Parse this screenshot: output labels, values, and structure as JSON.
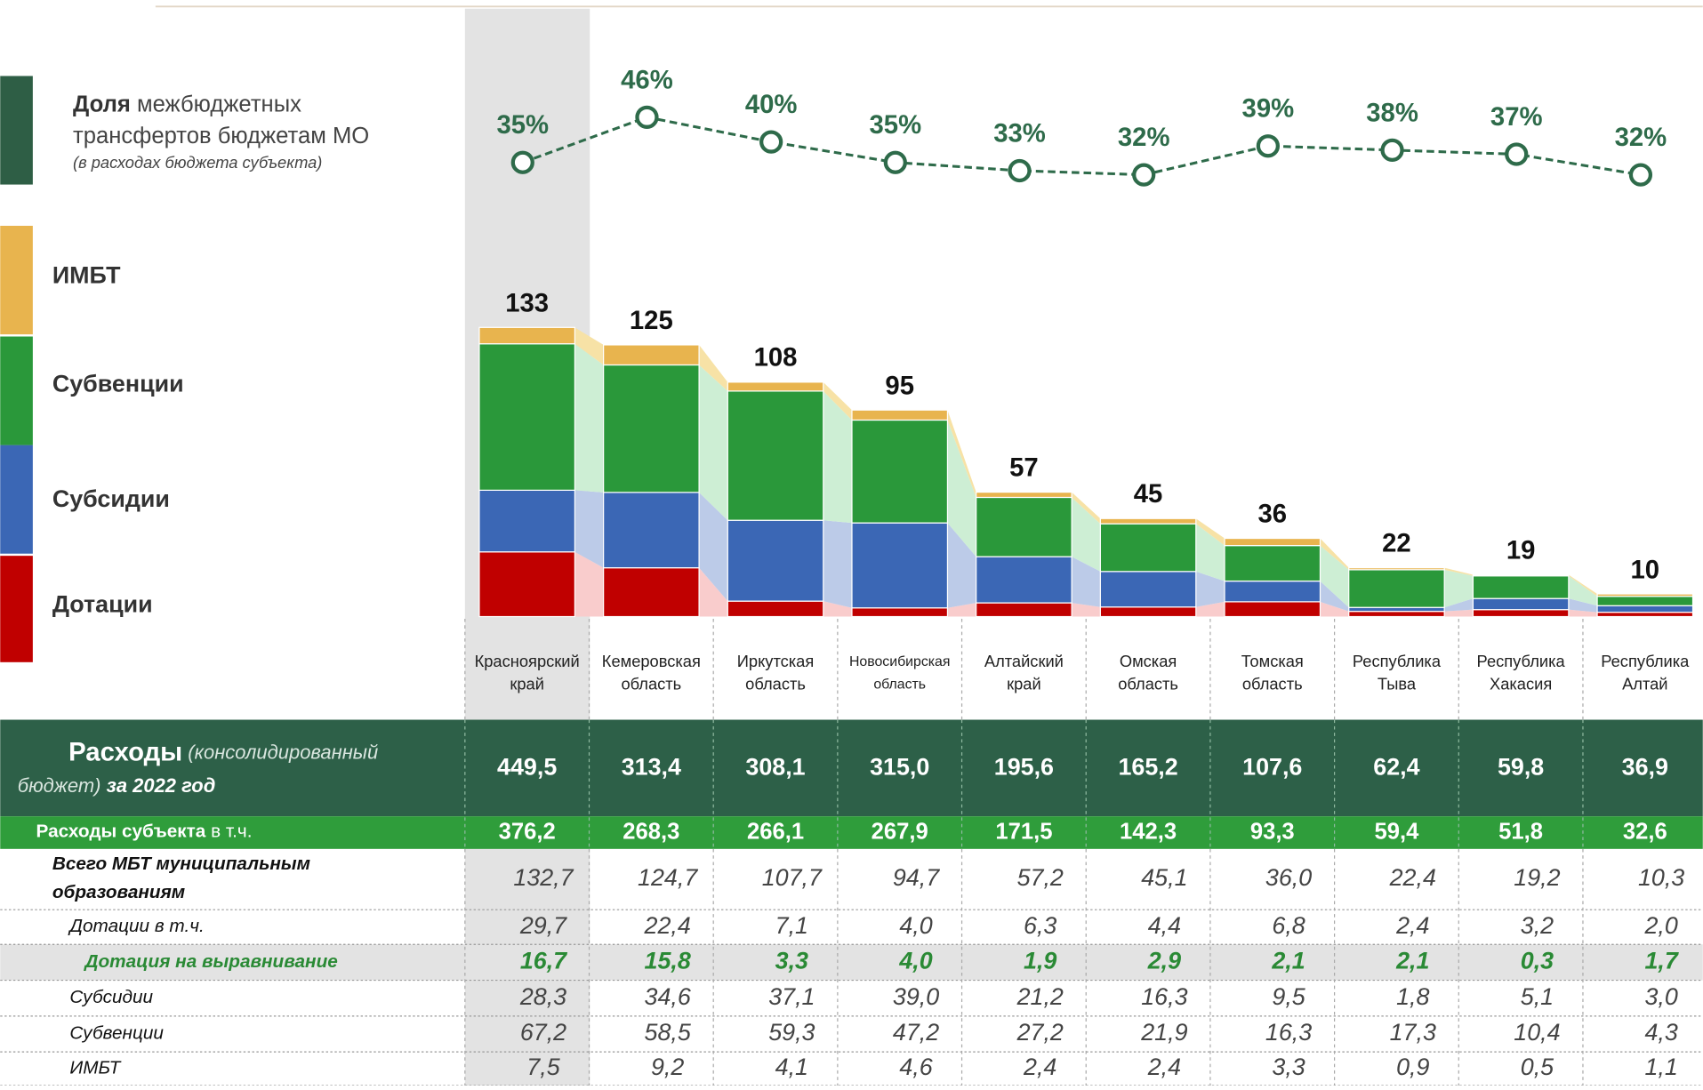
{
  "chart_data": {
    "type": "bar",
    "stacked": true,
    "categories": [
      "Красноярский край",
      "Кемеровская область",
      "Иркутская область",
      "Новосибирская область",
      "Алтайский край",
      "Омская область",
      "Томская область",
      "Республика Тыва",
      "Республика Хакасия",
      "Республика Алтай"
    ],
    "series": [
      {
        "name": "Дотации",
        "color": "#c00000",
        "flow_color": "#f9cccc",
        "values": [
          29.7,
          22.4,
          7.1,
          4.0,
          6.3,
          4.4,
          6.8,
          2.4,
          3.2,
          2.0
        ]
      },
      {
        "name": "Субсидии",
        "color": "#3b67b5",
        "flow_color": "#bccbe8",
        "values": [
          28.3,
          34.6,
          37.1,
          39.0,
          21.2,
          16.3,
          9.5,
          1.8,
          5.1,
          3.0
        ]
      },
      {
        "name": "Субвенции",
        "color": "#2a983a",
        "flow_color": "#cdeed4",
        "values": [
          67.2,
          58.5,
          59.3,
          47.2,
          27.2,
          21.9,
          16.3,
          17.3,
          10.4,
          4.3
        ]
      },
      {
        "name": "ИМБТ",
        "color": "#e8b44e",
        "flow_color": "#f7e2a6",
        "values": [
          7.5,
          9.2,
          4.1,
          4.6,
          2.4,
          2.4,
          3.3,
          0.9,
          0.5,
          1.1
        ]
      }
    ],
    "totals": {
      "values": [
        132.7,
        124.7,
        107.7,
        94.7,
        57.2,
        45.1,
        36.0,
        22.4,
        19.2,
        10.3
      ],
      "value_labels": [
        "133",
        "125",
        "108",
        "95",
        "57",
        "45",
        "36",
        "22",
        "19",
        "10"
      ]
    },
    "ylim": [
      0,
      140
    ],
    "line": {
      "type": "line",
      "name_bold": "Доля",
      "name": "межбюджетных трансфертов бюджетам МО",
      "note": "(в расходах бюджета субъекта)",
      "color": "#2e6b4a",
      "legend_color": "#2e5e45",
      "axis": "y2",
      "values": [
        35,
        46,
        40,
        35,
        33,
        32,
        39,
        38,
        37,
        32
      ],
      "value_labels": [
        "35%",
        "46%",
        "40%",
        "35%",
        "33%",
        "32%",
        "39%",
        "38%",
        "37%",
        "32%"
      ]
    },
    "y2lim": [
      30,
      50
    ]
  },
  "table": {
    "header": {
      "label_bold": "Расходы",
      "label_italic": "(консолидированный бюджет)",
      "label_bold_italic": "за 2022 год",
      "cells": [
        "449,5",
        "313,4",
        "308,1",
        "315,0",
        "195,6",
        "165,2",
        "107,6",
        "62,4",
        "59,8",
        "36,9"
      ]
    },
    "subheader": {
      "label_bold": "Расходы субъекта",
      "label": "в т.ч.",
      "cells": [
        "376,2",
        "268,3",
        "266,1",
        "267,9",
        "171,5",
        "142,3",
        "93,3",
        "59,4",
        "51,8",
        "32,6"
      ]
    },
    "rows": [
      {
        "label": "Всего МБТ муниципальным образованиям",
        "cells": [
          "132,7",
          "124,7",
          "107,7",
          "94,7",
          "57,2",
          "45,1",
          "36,0",
          "22,4",
          "19,2",
          "10,3"
        ]
      },
      {
        "label": "Дотации в т.ч.",
        "cells": [
          "29,7",
          "22,4",
          "7,1",
          "4,0",
          "6,3",
          "4,4",
          "6,8",
          "2,4",
          "3,2",
          "2,0"
        ]
      },
      {
        "label": "Дотация на выравнивание",
        "cells": [
          "16,7",
          "15,8",
          "3,3",
          "4,0",
          "1,9",
          "2,9",
          "2,1",
          "2,1",
          "0,3",
          "1,7"
        ]
      },
      {
        "label": "Субсидии",
        "cells": [
          "28,3",
          "34,6",
          "37,1",
          "39,0",
          "21,2",
          "16,3",
          "9,5",
          "1,8",
          "5,1",
          "3,0"
        ]
      },
      {
        "label": "Субвенции",
        "cells": [
          "67,2",
          "58,5",
          "59,3",
          "47,2",
          "27,2",
          "21,9",
          "16,3",
          "17,3",
          "10,4",
          "4,3"
        ]
      },
      {
        "label": "ИМБТ",
        "cells": [
          "7,5",
          "9,2",
          "4,1",
          "4,6",
          "2,4",
          "2,4",
          "3,3",
          "0,9",
          "0,5",
          "1,1"
        ]
      }
    ]
  }
}
